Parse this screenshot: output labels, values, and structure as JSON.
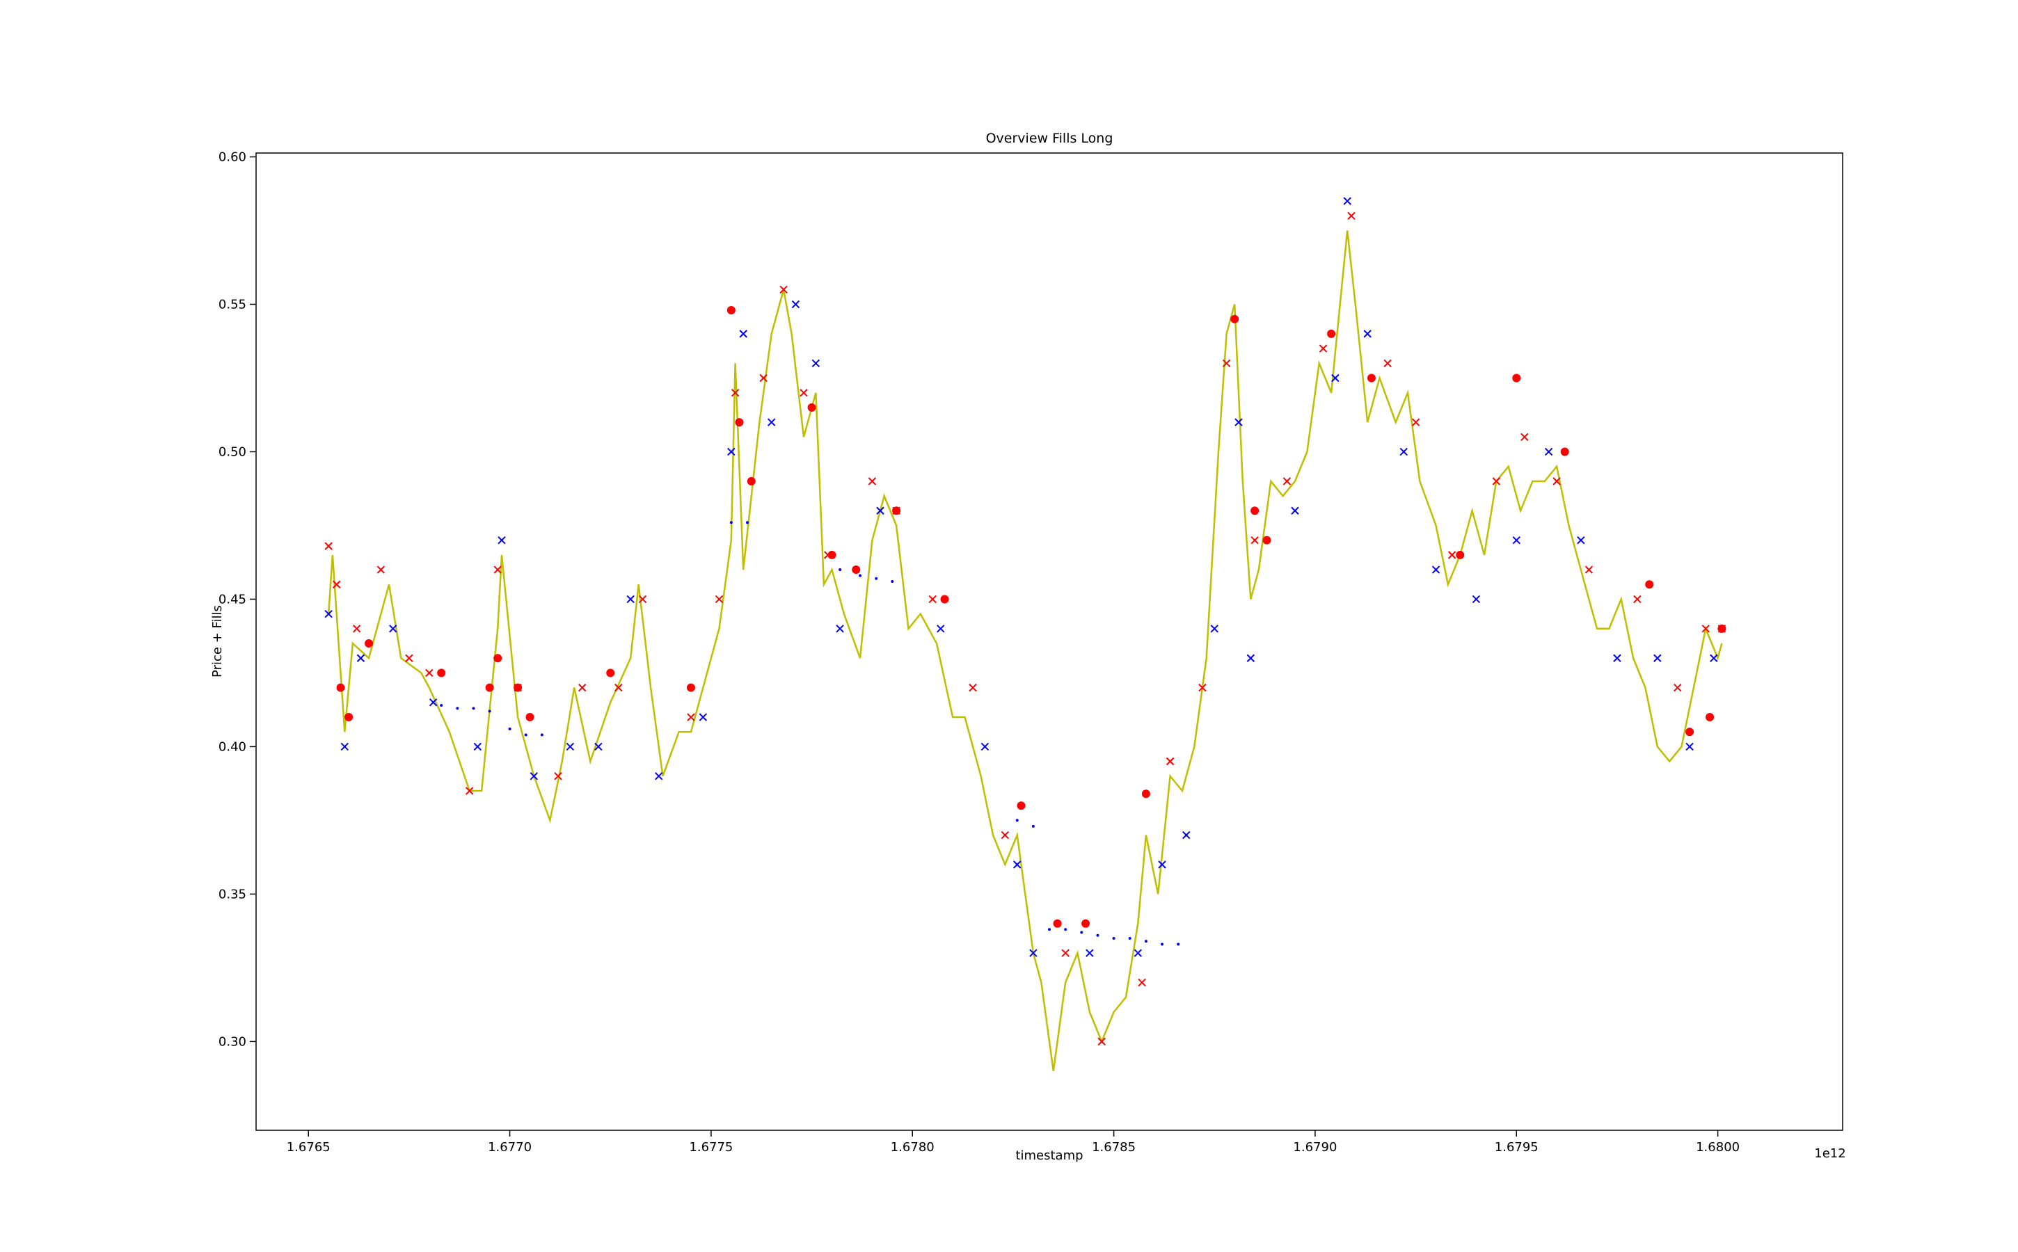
{
  "chart_data": {
    "type": "line",
    "title": "Overview Fills Long",
    "x_label": "timestamp",
    "y_label": "Price + Fills",
    "x_offset_label": "1e12",
    "xlim": [
      1.67637,
      1.68031
    ],
    "ylim": [
      0.2699,
      0.6013
    ],
    "xticks": [
      {
        "value": 1.6765,
        "label": "1.6765"
      },
      {
        "value": 1.677,
        "label": "1.6770"
      },
      1.6775,
      {
        "value": 1.678,
        "label": "1.6780"
      },
      1.6785,
      {
        "value": 1.679,
        "label": "1.6790"
      },
      1.6795,
      {
        "value": 1.68,
        "label": "1.6800"
      }
    ],
    "yticks": [
      {
        "value": 0.3,
        "label": "0.30"
      },
      0.35,
      {
        "value": 0.4,
        "label": "0.40"
      },
      0.45,
      {
        "value": 0.5,
        "label": "0.50"
      },
      0.55,
      {
        "value": 0.6,
        "label": "0.60"
      }
    ],
    "series": [
      {
        "style": "line",
        "color": "#bfbf00",
        "x": [
          1.67655,
          1.67656,
          1.67659,
          1.67661,
          1.67665,
          1.6767,
          1.67673,
          1.67678,
          1.6768,
          1.67685,
          1.6769,
          1.67693,
          1.67697,
          1.67698,
          1.67702,
          1.67706,
          1.6771,
          1.67713,
          1.67716,
          1.6772,
          1.67725,
          1.6773,
          1.67732,
          1.67735,
          1.67738,
          1.67742,
          1.67745,
          1.6775,
          1.67752,
          1.67755,
          1.67756,
          1.67758,
          1.67762,
          1.67765,
          1.67768,
          1.6777,
          1.67773,
          1.67776,
          1.67778,
          1.6778,
          1.67783,
          1.67787,
          1.6779,
          1.67793,
          1.67796,
          1.67799,
          1.67802,
          1.67806,
          1.6781,
          1.67813,
          1.67817,
          1.6782,
          1.67823,
          1.67826,
          1.6783,
          1.67832,
          1.67835,
          1.67838,
          1.67841,
          1.67844,
          1.67847,
          1.6785,
          1.67853,
          1.67856,
          1.67858,
          1.67861,
          1.67864,
          1.67867,
          1.6787,
          1.67873,
          1.67876,
          1.67878,
          1.6788,
          1.67882,
          1.67884,
          1.67886,
          1.67889,
          1.67892,
          1.67895,
          1.67898,
          1.67901,
          1.67904,
          1.67908,
          1.6791,
          1.67913,
          1.67916,
          1.6792,
          1.67923,
          1.67926,
          1.6793,
          1.67933,
          1.67936,
          1.67939,
          1.67942,
          1.67945,
          1.67948,
          1.67951,
          1.67954,
          1.67957,
          1.6796,
          1.67963,
          1.67967,
          1.6797,
          1.67973,
          1.67976,
          1.67979,
          1.67982,
          1.67985,
          1.67988,
          1.67991,
          1.67994,
          1.67997,
          1.68,
          1.68001
        ],
        "y": [
          0.445,
          0.465,
          0.405,
          0.435,
          0.43,
          0.455,
          0.43,
          0.425,
          0.42,
          0.405,
          0.385,
          0.385,
          0.44,
          0.465,
          0.41,
          0.39,
          0.375,
          0.395,
          0.42,
          0.395,
          0.415,
          0.43,
          0.455,
          0.42,
          0.39,
          0.405,
          0.405,
          0.43,
          0.44,
          0.47,
          0.53,
          0.46,
          0.51,
          0.54,
          0.555,
          0.54,
          0.505,
          0.52,
          0.455,
          0.46,
          0.445,
          0.43,
          0.47,
          0.485,
          0.475,
          0.44,
          0.445,
          0.435,
          0.41,
          0.41,
          0.39,
          0.37,
          0.36,
          0.37,
          0.33,
          0.32,
          0.29,
          0.32,
          0.33,
          0.31,
          0.3,
          0.31,
          0.315,
          0.34,
          0.37,
          0.35,
          0.39,
          0.385,
          0.4,
          0.43,
          0.5,
          0.54,
          0.55,
          0.49,
          0.45,
          0.46,
          0.49,
          0.485,
          0.49,
          0.5,
          0.53,
          0.52,
          0.575,
          0.55,
          0.51,
          0.525,
          0.51,
          0.52,
          0.49,
          0.475,
          0.455,
          0.465,
          0.48,
          0.465,
          0.49,
          0.495,
          0.48,
          0.49,
          0.49,
          0.495,
          0.475,
          0.455,
          0.44,
          0.44,
          0.45,
          0.43,
          0.42,
          0.4,
          0.395,
          0.4,
          0.42,
          0.44,
          0.43,
          0.435
        ]
      },
      {
        "style": "cross",
        "color": "#ff0000",
        "x": [
          1.67655,
          1.67657,
          1.67662,
          1.67668,
          1.67675,
          1.6768,
          1.6769,
          1.67697,
          1.67702,
          1.67712,
          1.67718,
          1.67727,
          1.67733,
          1.67745,
          1.67752,
          1.67756,
          1.67763,
          1.67768,
          1.67773,
          1.67779,
          1.6779,
          1.67796,
          1.67805,
          1.67815,
          1.67823,
          1.67838,
          1.67847,
          1.67857,
          1.67864,
          1.67872,
          1.67878,
          1.67885,
          1.67893,
          1.67902,
          1.67909,
          1.67918,
          1.67925,
          1.67934,
          1.67945,
          1.67952,
          1.6796,
          1.67968,
          1.6798,
          1.6799,
          1.67997,
          1.68001
        ],
        "y": [
          0.468,
          0.455,
          0.44,
          0.46,
          0.43,
          0.425,
          0.385,
          0.46,
          0.42,
          0.39,
          0.42,
          0.42,
          0.45,
          0.41,
          0.45,
          0.52,
          0.525,
          0.555,
          0.52,
          0.465,
          0.49,
          0.48,
          0.45,
          0.42,
          0.37,
          0.33,
          0.3,
          0.32,
          0.395,
          0.42,
          0.53,
          0.47,
          0.49,
          0.535,
          0.58,
          0.53,
          0.51,
          0.465,
          0.49,
          0.505,
          0.49,
          0.46,
          0.45,
          0.42,
          0.44,
          0.44
        ]
      },
      {
        "style": "cross",
        "color": "#0000ff",
        "x": [
          1.67655,
          1.67659,
          1.67663,
          1.67671,
          1.67681,
          1.67692,
          1.67698,
          1.67706,
          1.67715,
          1.67722,
          1.6773,
          1.67737,
          1.67748,
          1.67755,
          1.67758,
          1.67765,
          1.67771,
          1.67776,
          1.67782,
          1.67792,
          1.67807,
          1.67818,
          1.67826,
          1.6783,
          1.67844,
          1.67856,
          1.67862,
          1.67868,
          1.67875,
          1.67881,
          1.67884,
          1.67895,
          1.67905,
          1.67908,
          1.67913,
          1.67922,
          1.6793,
          1.6794,
          1.6795,
          1.67958,
          1.67966,
          1.67975,
          1.67985,
          1.67993,
          1.67999
        ],
        "y": [
          0.445,
          0.4,
          0.43,
          0.44,
          0.415,
          0.4,
          0.47,
          0.39,
          0.4,
          0.4,
          0.45,
          0.39,
          0.41,
          0.5,
          0.54,
          0.51,
          0.55,
          0.53,
          0.44,
          0.48,
          0.44,
          0.4,
          0.36,
          0.33,
          0.33,
          0.33,
          0.36,
          0.37,
          0.44,
          0.51,
          0.43,
          0.48,
          0.525,
          0.585,
          0.54,
          0.5,
          0.46,
          0.45,
          0.47,
          0.5,
          0.47,
          0.43,
          0.43,
          0.4,
          0.43
        ]
      },
      {
        "style": "dot",
        "color": "#ff0000",
        "x": [
          1.67658,
          1.6766,
          1.67665,
          1.67683,
          1.67695,
          1.67697,
          1.67702,
          1.67705,
          1.67725,
          1.67745,
          1.67755,
          1.67757,
          1.6776,
          1.67775,
          1.6778,
          1.67786,
          1.67796,
          1.67808,
          1.67827,
          1.67836,
          1.67843,
          1.67858,
          1.6788,
          1.67885,
          1.67888,
          1.67904,
          1.67914,
          1.67936,
          1.6795,
          1.67962,
          1.67983,
          1.67993,
          1.67998,
          1.68001
        ],
        "y": [
          0.42,
          0.41,
          0.435,
          0.425,
          0.42,
          0.43,
          0.42,
          0.41,
          0.425,
          0.42,
          0.548,
          0.51,
          0.49,
          0.515,
          0.465,
          0.46,
          0.48,
          0.45,
          0.38,
          0.34,
          0.34,
          0.384,
          0.545,
          0.48,
          0.47,
          0.54,
          0.525,
          0.465,
          0.525,
          0.5,
          0.455,
          0.405,
          0.41,
          0.44
        ]
      },
      {
        "style": "small-dot",
        "color": "#0000ff",
        "x": [
          1.67683,
          1.67687,
          1.67691,
          1.67695,
          1.677,
          1.67704,
          1.67708,
          1.67755,
          1.67759,
          1.67782,
          1.67787,
          1.67791,
          1.67795,
          1.67826,
          1.6783,
          1.67834,
          1.67838,
          1.67842,
          1.67846,
          1.6785,
          1.67854,
          1.67858,
          1.67862,
          1.67866
        ],
        "y": [
          0.414,
          0.413,
          0.413,
          0.412,
          0.406,
          0.404,
          0.404,
          0.476,
          0.476,
          0.46,
          0.458,
          0.457,
          0.456,
          0.375,
          0.373,
          0.338,
          0.338,
          0.337,
          0.336,
          0.335,
          0.335,
          0.334,
          0.333,
          0.333
        ]
      }
    ]
  }
}
